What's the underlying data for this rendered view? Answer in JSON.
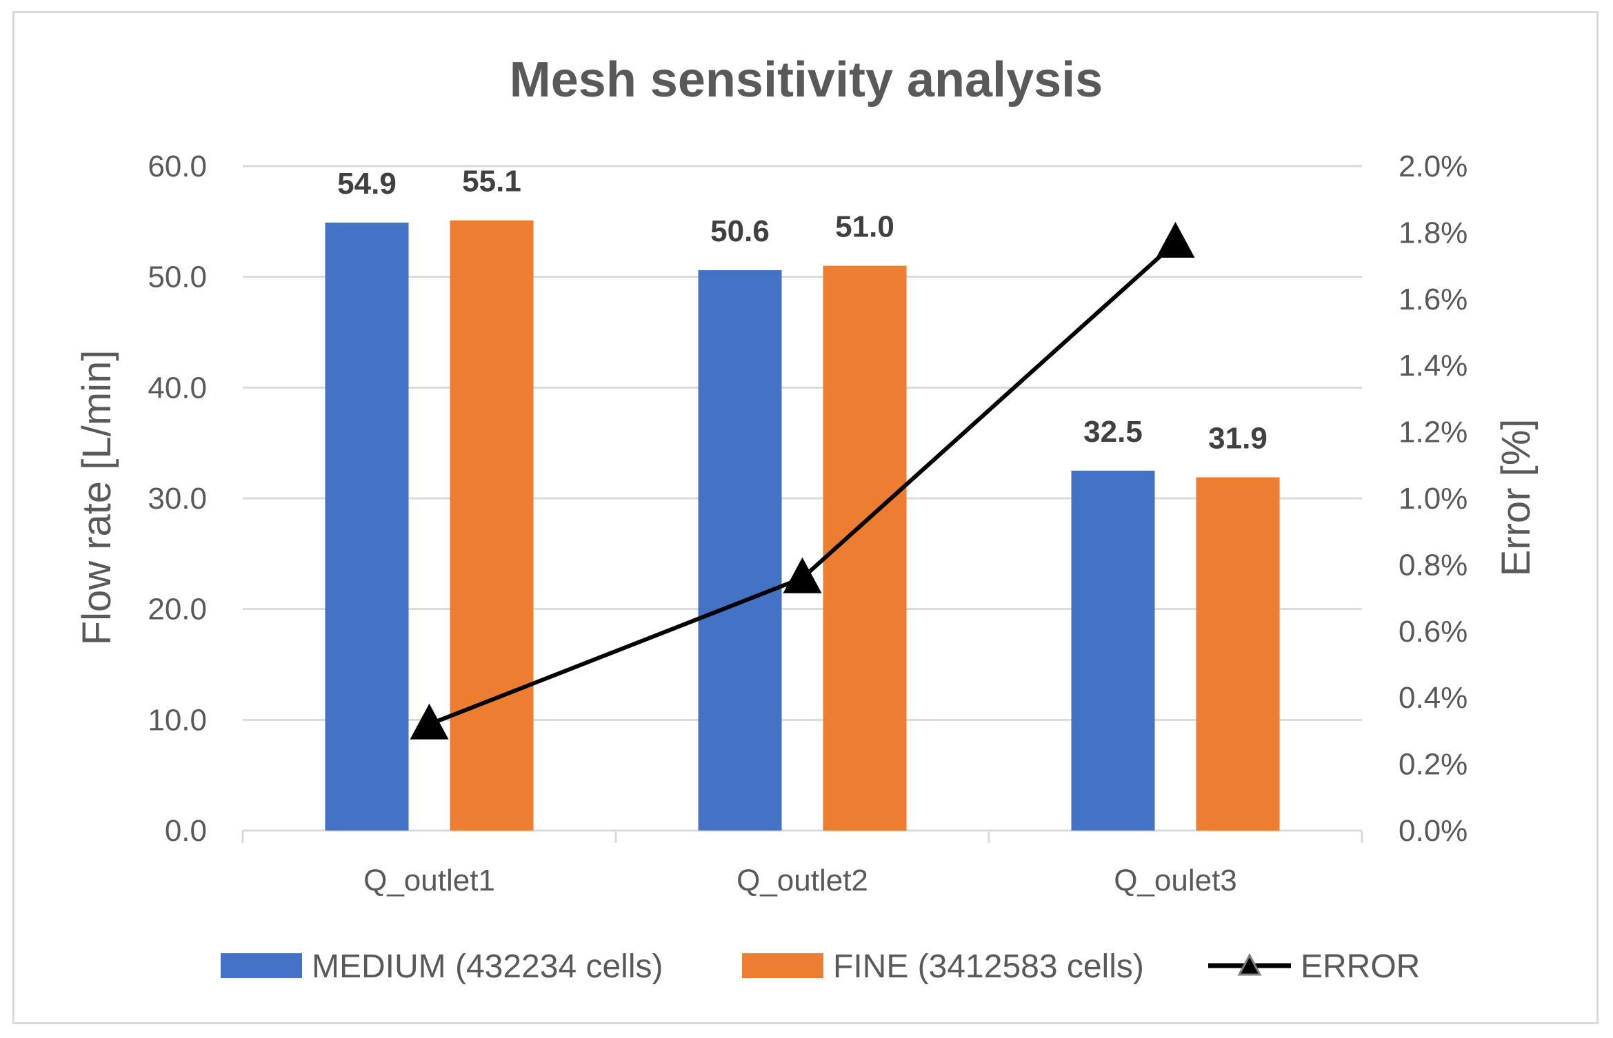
{
  "chart_data": {
    "type": "bar",
    "title": "Mesh sensitivity analysis",
    "categories": [
      "Q_outlet1",
      "Q_outlet2",
      "Q_oulet3"
    ],
    "series": [
      {
        "name": "MEDIUM (432234 cells)",
        "kind": "bar",
        "axis": "left",
        "color": "#4472C4",
        "values": [
          54.9,
          50.6,
          32.5
        ],
        "labels": [
          "54.9",
          "50.6",
          "32.5"
        ]
      },
      {
        "name": "FINE (3412583 cells)",
        "kind": "bar",
        "axis": "left",
        "color": "#ED7D31",
        "values": [
          55.1,
          51.0,
          31.9
        ],
        "labels": [
          "55.1",
          "51.0",
          "31.9"
        ]
      },
      {
        "name": "ERROR",
        "kind": "line",
        "marker": "triangle",
        "axis": "right",
        "color": "#000000",
        "values": [
          0.32,
          0.76,
          1.77
        ]
      }
    ],
    "ylabel": "Flow rate [L/min]",
    "y2label": "Error [%]",
    "ylim": [
      0,
      60
    ],
    "y2lim": [
      0,
      2.0
    ],
    "yticks": [
      "0.0",
      "10.0",
      "20.0",
      "30.0",
      "40.0",
      "50.0",
      "60.0"
    ],
    "y2ticks": [
      "0.0%",
      "0.2%",
      "0.4%",
      "0.6%",
      "0.8%",
      "1.0%",
      "1.2%",
      "1.4%",
      "1.6%",
      "1.8%",
      "2.0%"
    ],
    "grid": true,
    "legend_position": "bottom"
  }
}
